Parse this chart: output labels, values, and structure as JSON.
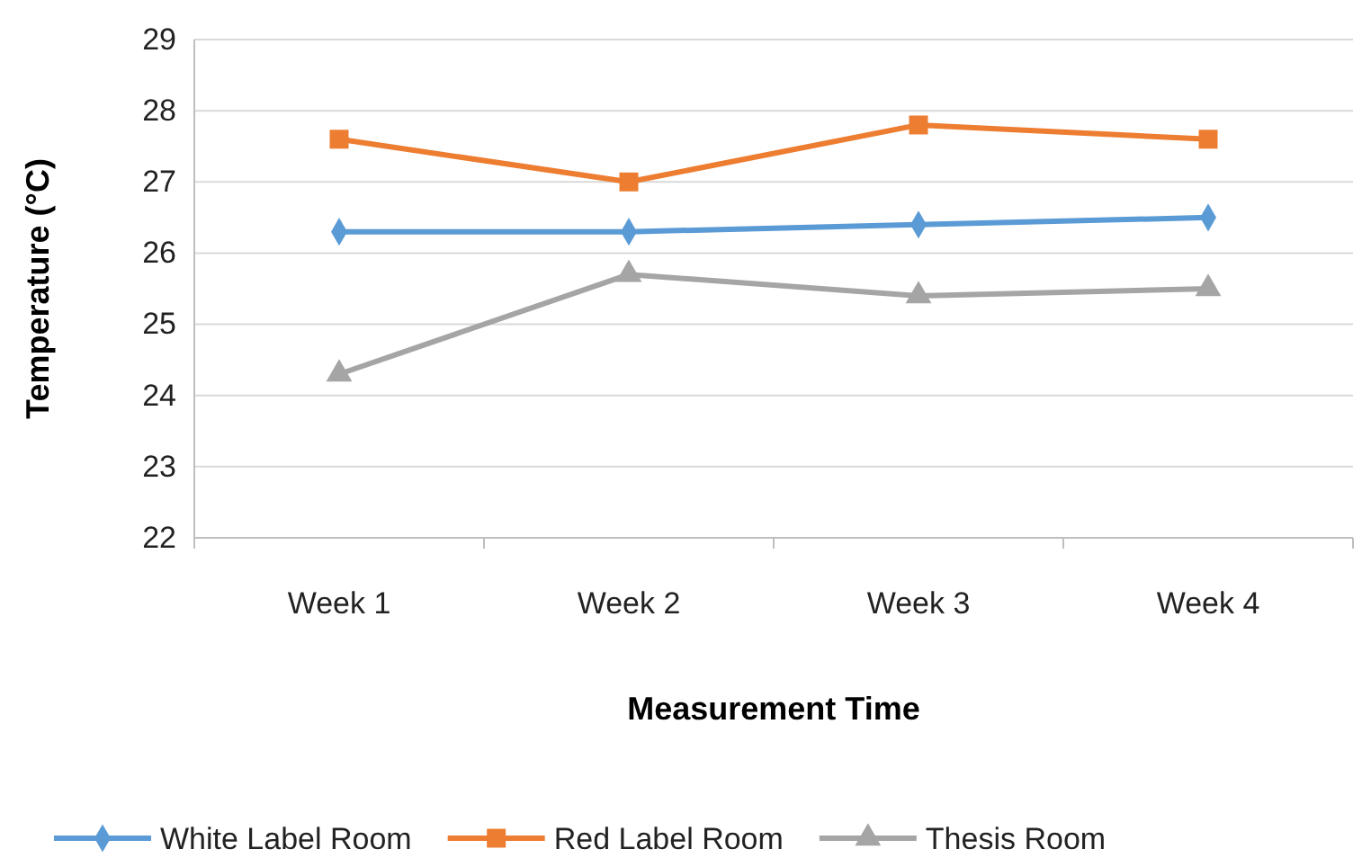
{
  "chart_data": {
    "type": "line",
    "xlabel": "Measurement Time",
    "ylabel": "Temperature (°C)",
    "categories": [
      "Week 1",
      "Week 2",
      "Week 3",
      "Week 4"
    ],
    "series": [
      {
        "name": "White Label Room",
        "color": "#5b9bd5",
        "marker": "diamond",
        "values": [
          26.3,
          26.3,
          26.4,
          26.5
        ]
      },
      {
        "name": "Red Label Room",
        "color": "#ed7d31",
        "marker": "square",
        "values": [
          27.6,
          27.0,
          27.8,
          27.6
        ]
      },
      {
        "name": "Thesis Room",
        "color": "#a5a5a5",
        "marker": "triangle",
        "values": [
          24.3,
          25.7,
          25.4,
          25.5
        ]
      }
    ],
    "ylim": [
      22,
      29
    ],
    "yticks": [
      22,
      23,
      24,
      25,
      26,
      27,
      28,
      29
    ],
    "grid": "y",
    "legend": "bottom"
  }
}
